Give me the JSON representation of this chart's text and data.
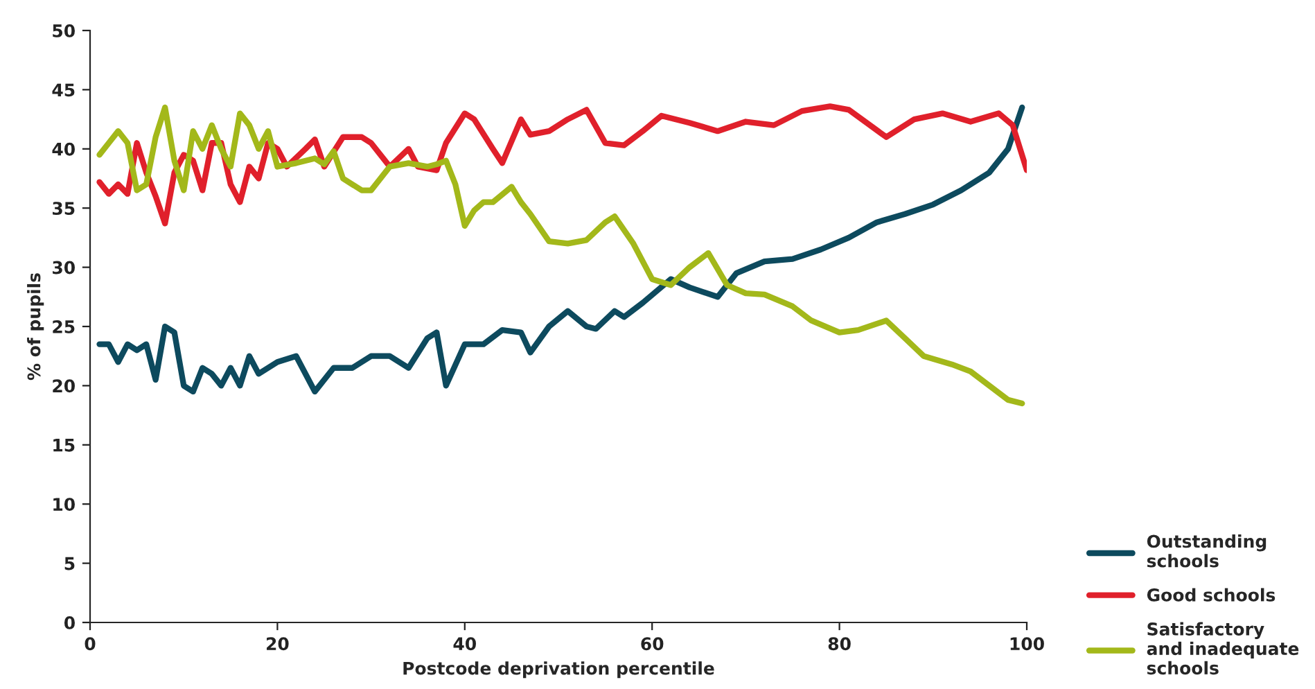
{
  "chart_data": {
    "type": "line",
    "xlabel": "Postcode deprivation percentile",
    "ylabel": "% of pupils",
    "xlim": [
      0,
      100
    ],
    "xticks": [
      0,
      20,
      40,
      60,
      80,
      100
    ],
    "ylim": [
      0,
      50
    ],
    "yticks": [
      0,
      5,
      10,
      15,
      20,
      25,
      30,
      35,
      40,
      45,
      50
    ],
    "grid": false,
    "legend": "bottom right",
    "line_style": "solid",
    "marker": "none",
    "series": [
      {
        "name": "Outstanding\nschools",
        "color": "#0d4a5e",
        "x": [
          1,
          2,
          3,
          4,
          5,
          6,
          7,
          8,
          9,
          10,
          11,
          12,
          13,
          14,
          15,
          16,
          17,
          18,
          19,
          20,
          22,
          24,
          26,
          28,
          30,
          32,
          34,
          36,
          37,
          38,
          40,
          42,
          44,
          46,
          47,
          49,
          51,
          53,
          54,
          56,
          57,
          59,
          62,
          64,
          67,
          69,
          72,
          75,
          78,
          81,
          84,
          87,
          90,
          93,
          96,
          98,
          99.5
        ],
        "values": [
          23.5,
          23.5,
          22,
          23.5,
          23,
          23.5,
          20.5,
          25,
          24.5,
          20,
          19.5,
          21.5,
          21,
          20,
          21.5,
          20,
          22.5,
          21,
          21.5,
          22,
          22.5,
          19.5,
          21.5,
          21.5,
          22.5,
          22.5,
          21.5,
          24,
          24.5,
          20,
          23.5,
          23.5,
          24.7,
          24.5,
          22.8,
          25,
          26.3,
          25,
          24.8,
          26.3,
          25.8,
          27,
          29,
          28.3,
          27.5,
          29.5,
          30.5,
          30.7,
          31.5,
          32.5,
          33.8,
          34.5,
          35.3,
          36.5,
          38,
          40,
          43.5
        ]
      },
      {
        "name": "Good schools",
        "color": "#e0202b",
        "x": [
          1,
          2,
          3,
          4,
          5,
          6,
          7,
          8,
          9,
          10,
          11,
          12,
          13,
          14,
          15,
          16,
          17,
          18,
          19,
          20,
          21,
          23,
          24,
          25,
          27,
          29,
          30,
          32,
          34,
          35,
          37,
          38,
          40,
          41,
          43,
          44,
          46,
          47,
          49,
          51,
          53,
          55,
          57,
          59,
          61,
          64,
          67,
          70,
          73,
          76,
          79,
          81,
          85,
          88,
          91,
          94,
          97,
          98.5,
          100
        ],
        "values": [
          37.2,
          36.2,
          37,
          36.2,
          40.5,
          38,
          36,
          33.7,
          38,
          39.5,
          39,
          36.5,
          40.5,
          40.5,
          37,
          35.5,
          38.5,
          37.5,
          40.5,
          40,
          38.5,
          40,
          40.8,
          38.5,
          41,
          41,
          40.5,
          38.5,
          40,
          38.5,
          38.2,
          40.5,
          43,
          42.5,
          40,
          38.8,
          42.5,
          41.2,
          41.5,
          42.5,
          43.3,
          40.5,
          40.3,
          41.5,
          42.8,
          42.2,
          41.5,
          42.3,
          42,
          43.2,
          43.6,
          43.3,
          41,
          42.5,
          43,
          42.3,
          43,
          42,
          38.2
        ]
      },
      {
        "name": "Satisfactory\nand inadequate\nschools",
        "color": "#a3b81a",
        "x": [
          1,
          2,
          3,
          4,
          5,
          6,
          7,
          8,
          9,
          10,
          11,
          12,
          13,
          14,
          15,
          16,
          17,
          18,
          19,
          20,
          22,
          24,
          25,
          26,
          27,
          29,
          30,
          32,
          34,
          36,
          37,
          38,
          39,
          40,
          41,
          42,
          43,
          45,
          46,
          47,
          49,
          51,
          53,
          55,
          56,
          58,
          60,
          62,
          64,
          66,
          68,
          70,
          72,
          75,
          77,
          80,
          82,
          85,
          87,
          89,
          92,
          94,
          96,
          98,
          99.5
        ],
        "values": [
          39.5,
          40.5,
          41.5,
          40.5,
          36.5,
          37,
          41,
          43.5,
          39,
          36.5,
          41.5,
          40,
          42,
          40,
          38.5,
          43,
          42,
          40,
          41.5,
          38.5,
          38.8,
          39.2,
          38.7,
          39.8,
          37.5,
          36.5,
          36.5,
          38.5,
          38.8,
          38.5,
          38.7,
          39,
          37,
          33.5,
          34.8,
          35.5,
          35.5,
          36.8,
          35.5,
          34.5,
          32.2,
          32,
          32.3,
          33.8,
          34.3,
          32,
          29,
          28.5,
          30,
          31.2,
          28.5,
          27.8,
          27.7,
          26.7,
          25.5,
          24.5,
          24.7,
          25.5,
          24,
          22.5,
          21.8,
          21.2,
          20,
          18.8,
          18.5
        ]
      }
    ]
  }
}
